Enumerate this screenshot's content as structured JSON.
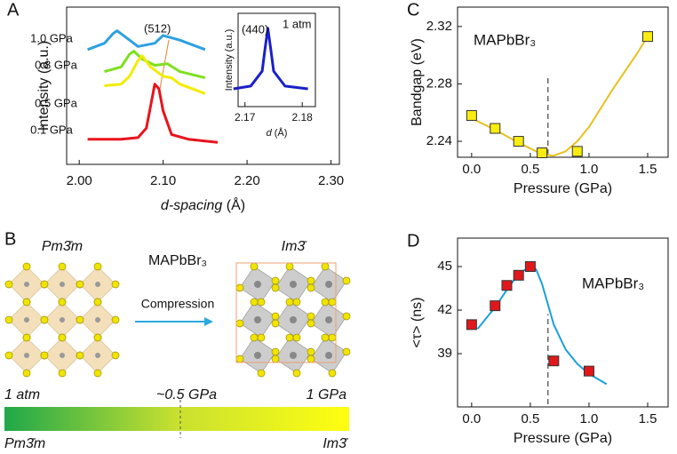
{
  "panel_labels": [
    "A",
    "B",
    "C",
    "D"
  ],
  "chart_data": [
    {
      "type": "line",
      "xlabel": "d-spacing",
      "xlabel_unit": " (Å)",
      "ylabel": "Intensity (a.u.)",
      "xlim": [
        1.985,
        2.31
      ],
      "xticks": [
        {
          "value": 2.0,
          "label": "2.00"
        },
        {
          "value": 2.1,
          "label": "2.10"
        },
        {
          "value": 2.2,
          "label": "2.20"
        },
        {
          "value": 2.3,
          "label": "2.30"
        }
      ],
      "ylim": [
        0,
        10
      ],
      "annotations": [
        "(512)"
      ],
      "series": [
        {
          "name": "1.0 GPa",
          "color": "#2ea0e0",
          "x": [
            2.01,
            2.03,
            2.04,
            2.045,
            2.055,
            2.07,
            2.09,
            2.1,
            2.12,
            2.15
          ],
          "values": [
            7.3,
            7.7,
            8.3,
            8.5,
            8.1,
            7.5,
            7.7,
            8.2,
            7.9,
            7.3
          ]
        },
        {
          "name": "0.8 GPa",
          "color": "#7ee020",
          "x": [
            2.03,
            2.05,
            2.06,
            2.065,
            2.075,
            2.09,
            2.105,
            2.12,
            2.15
          ],
          "values": [
            5.9,
            6.2,
            7.0,
            7.2,
            6.7,
            6.3,
            6.4,
            5.9,
            5.5
          ]
        },
        {
          "name": "0.5 GPa",
          "color": "#f2ec00",
          "x": [
            2.03,
            2.05,
            2.06,
            2.07,
            2.075,
            2.085,
            2.1,
            2.11,
            2.12,
            2.15
          ],
          "values": [
            5.0,
            5.1,
            5.6,
            6.6,
            6.9,
            6.2,
            5.6,
            5.5,
            5.1,
            4.5
          ]
        },
        {
          "name": "0.1 GPa",
          "color": "#e8141c",
          "x": [
            2.01,
            2.05,
            2.07,
            2.08,
            2.085,
            2.09,
            2.095,
            2.1,
            2.11,
            2.13,
            2.165
          ],
          "values": [
            1.6,
            1.6,
            1.7,
            2.3,
            3.7,
            5.1,
            4.8,
            3.4,
            1.9,
            1.6,
            1.4
          ]
        }
      ]
    },
    {
      "type": "line",
      "xlabel": "d",
      "xlabel_unit": " (Å)",
      "ylabel": "Intensity (a.u.)",
      "xlim": [
        2.1688,
        2.1823
      ],
      "xticks": [
        2.17,
        2.18
      ],
      "ylim": [
        0,
        10
      ],
      "annotations": [
        "(440)",
        "1 atm"
      ],
      "series": [
        {
          "color": "#1a20c8",
          "x": [
            2.168,
            2.171,
            2.173,
            2.1735,
            2.174,
            2.1745,
            2.175,
            2.177,
            2.181
          ],
          "values": [
            1.9,
            2.2,
            3.8,
            6.2,
            8.4,
            6.2,
            3.8,
            2.2,
            1.9
          ]
        }
      ]
    },
    {
      "type": "scatter",
      "xlabel": "Pressure (GPa)",
      "ylabel": "Bandgap (eV)",
      "xlim": [
        -0.12,
        1.674
      ],
      "xticks": [
        {
          "value": 0,
          "label": "0.0"
        },
        0.5,
        {
          "value": 1,
          "label": "1.0"
        },
        1.5
      ],
      "ylim": [
        2.2289,
        2.3335
      ],
      "yticks": [
        2.24,
        2.28,
        2.32
      ],
      "vline": 0.65,
      "annotations": [
        "MAPbBr₃"
      ],
      "series": [
        {
          "color": "#e8c020",
          "style": "line",
          "x": [
            0,
            0.2,
            0.4,
            0.6,
            0.7,
            0.8,
            0.9,
            1.0,
            1.2,
            1.4,
            1.5
          ],
          "values": [
            2.256,
            2.248,
            2.239,
            2.231,
            2.23,
            2.233,
            2.24,
            2.25,
            2.276,
            2.3,
            2.313
          ]
        },
        {
          "color": "#f8ec10",
          "marker": "square",
          "x": [
            0,
            0.2,
            0.4,
            0.6,
            0.9,
            1.5
          ],
          "values": [
            2.258,
            2.249,
            2.24,
            2.232,
            2.233,
            2.313
          ]
        }
      ]
    },
    {
      "type": "scatter",
      "xlabel": "Pressure (GPa)",
      "ylabel": "<τ> (ns)",
      "xlim": [
        -0.12,
        1.674
      ],
      "xticks": [
        {
          "value": 0,
          "label": "0.0"
        },
        0.5,
        {
          "value": 1,
          "label": "1.0"
        },
        1.5
      ],
      "ylim": [
        35.33,
        46.96
      ],
      "yticks": [
        39,
        42,
        45
      ],
      "vline": 0.65,
      "annotations": [
        "MAPbBr₃"
      ],
      "series": [
        {
          "color": "#1aa0d8",
          "style": "line",
          "x": [
            0.05,
            0.2,
            0.3,
            0.4,
            0.5,
            0.55,
            0.6,
            0.7,
            0.8,
            0.9,
            1.0,
            1.15
          ],
          "values": [
            40.7,
            42.2,
            43.4,
            44.5,
            45.0,
            44.8,
            43.8,
            41.0,
            39.3,
            38.3,
            37.6,
            36.9
          ]
        },
        {
          "color": "#e0181c",
          "marker": "square",
          "x": [
            0,
            0.2,
            0.3,
            0.4,
            0.5,
            0.7,
            1.0
          ],
          "values": [
            41.0,
            42.3,
            43.7,
            44.4,
            45.0,
            38.5,
            37.8
          ]
        }
      ]
    }
  ],
  "diagram": {
    "left_phase": "Pm3̄m",
    "right_phase": "Im3̄",
    "compound": "MAPbBr₃",
    "arrow_label": "Compression",
    "scale_labels": [
      "1 atm",
      "~0.5 GPa",
      "1 GPa"
    ],
    "scale_ends": [
      "Pm3̄m",
      "Im3̄"
    ]
  }
}
